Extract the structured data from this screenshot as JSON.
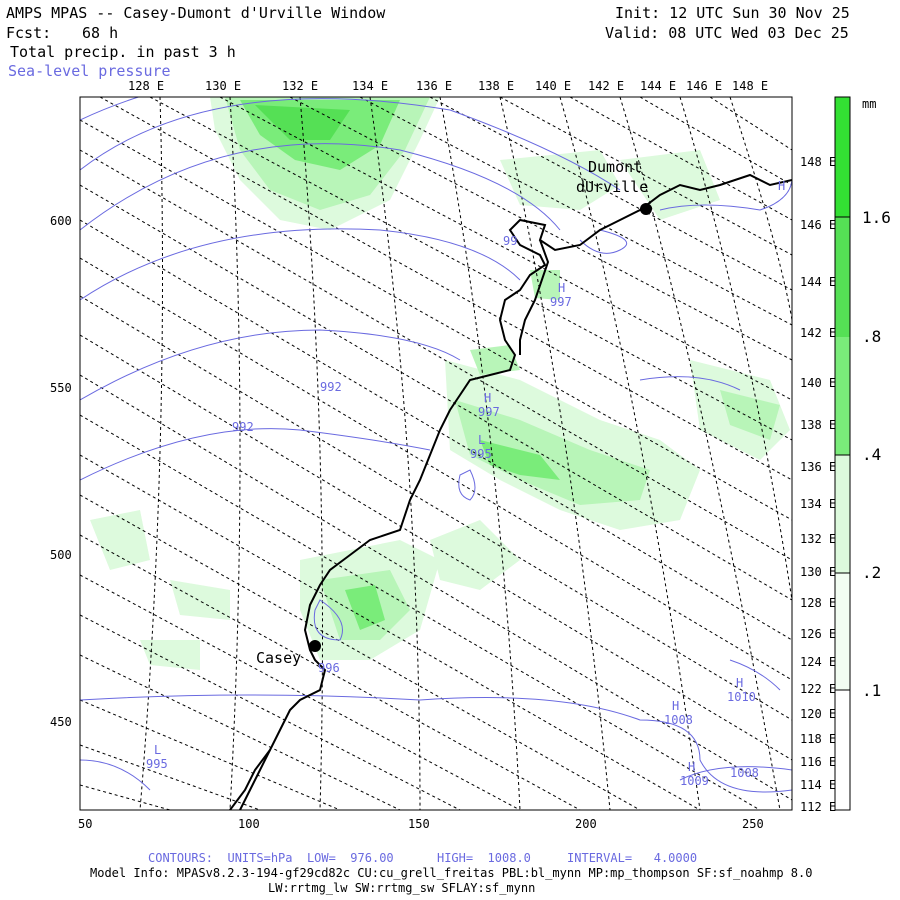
{
  "header": {
    "title": "AMPS MPAS -- Casey-Dumont d'Urville Window",
    "fcst_label": "Fcst:",
    "fcst_value": "68 h",
    "field": "Total precip. in past 3 h",
    "overlay": "Sea-level pressure",
    "init": "Init: 12 UTC Sun 30 Nov 25",
    "valid": "Valid: 08 UTC Wed 03 Dec 25"
  },
  "top_lon_labels": [
    "128 E",
    "130 E",
    "132 E",
    "134 E",
    "136 E",
    "138 E",
    "140 E",
    "142 E",
    "144 E",
    "146 E",
    "148 E"
  ],
  "right_lon_labels": [
    "148 E",
    "146 E",
    "144 E",
    "142 E",
    "140 E",
    "138 E",
    "136 E",
    "134 E",
    "132 E",
    "130 E",
    "128 E",
    "126 E",
    "124 E",
    "122 E",
    "120 E",
    "118 E",
    "116 E",
    "114 E",
    "112 E"
  ],
  "y_axis": [
    "600",
    "550",
    "500",
    "450"
  ],
  "x_axis": [
    "50",
    "100",
    "150",
    "200",
    "250"
  ],
  "stations": [
    {
      "name": "Dumont",
      "name2": "dUrville"
    },
    {
      "name": "Casey"
    }
  ],
  "pressure_labels": [
    "992",
    "992",
    "997",
    "997",
    "995",
    "996",
    "995",
    "1008",
    "1010",
    "1009",
    "1008",
    "99"
  ],
  "pressure_marks": [
    "H",
    "H",
    "L",
    "H",
    "H",
    "H",
    "L",
    "H"
  ],
  "colorbar": {
    "unit": "mm",
    "levels": [
      "1.6",
      ".8",
      ".4",
      ".2",
      ".1"
    ],
    "colors": [
      "#33e033",
      "#7aec7a",
      "#b8f5b8",
      "#ddfadd",
      "#ffffff"
    ]
  },
  "footer": {
    "contours": "CONTOURS:  UNITS=hPa  LOW=  976.00      HIGH=  1008.0     INTERVAL=   4.0000",
    "model_info": "Model Info: MPASv8.2.3-194-gf29cd82c CU:cu_grell_freitas PBL:bl_mynn MP:mp_thompson SF:sf_noahmp 8.0",
    "model_info2": "LW:rrtmg_lw SW:rrtmg_sw SFLAY:sf_mynn"
  }
}
